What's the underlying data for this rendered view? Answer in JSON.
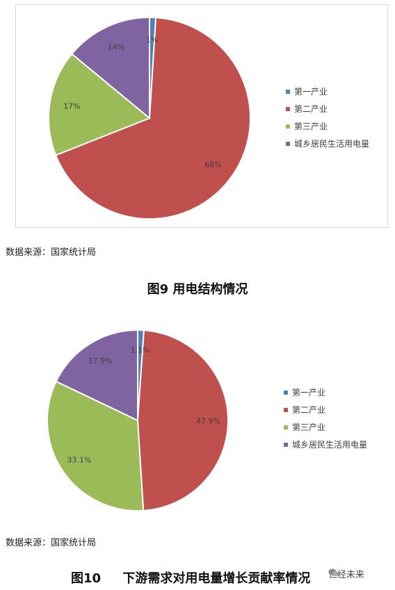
{
  "chart_data": [
    {
      "type": "pie",
      "title": "",
      "categories": [
        "第一产业",
        "第二产业",
        "第三产业",
        "城乡居民生活用电量"
      ],
      "values": [
        1,
        68,
        17,
        14
      ],
      "labels": [
        "1%",
        "68%",
        "17%",
        "14%"
      ],
      "colors": [
        "#4f81bd",
        "#c0504d",
        "#9bbb59",
        "#8064a2"
      ],
      "legend": "right"
    },
    {
      "type": "pie",
      "title": "",
      "categories": [
        "第一产业",
        "第二产业",
        "第三产业",
        "城乡居民生活用电量"
      ],
      "values": [
        1.1,
        47.9,
        33.1,
        17.9
      ],
      "labels": [
        "1.1%",
        "47.9%",
        "33.1%",
        "17.9%"
      ],
      "colors": [
        "#4f81bd",
        "#c0504d",
        "#9bbb59",
        "#8064a2"
      ],
      "legend": "right"
    }
  ],
  "source1": "数据来源：国家统计局",
  "caption1": "图9  用电结构情况",
  "source2": "数据来源：国家统计局",
  "caption2": "图10     下游需求对用电量增长贡献率情况",
  "watermark": "世经未来"
}
